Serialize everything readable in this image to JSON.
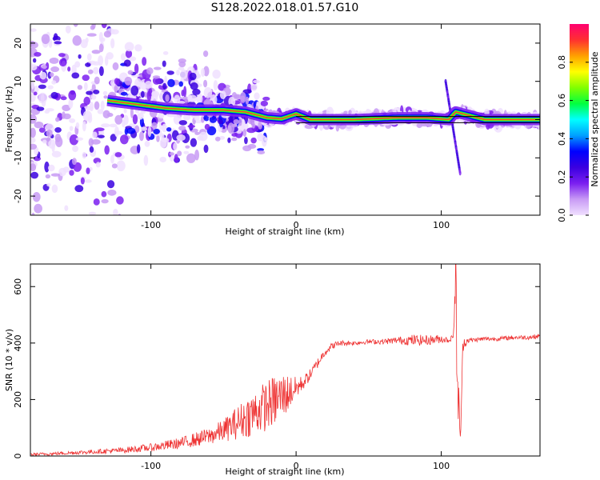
{
  "title": "S128.2022.018.01.57.G10",
  "chart_data": [
    {
      "type": "heatmap",
      "name": "spectrogram",
      "xlabel": "Height of straight line (km)",
      "ylabel": "Frequency (Hz)",
      "xlim": [
        -183,
        168
      ],
      "ylim": [
        -25,
        25
      ],
      "xticks": [
        -100,
        0,
        100
      ],
      "yticks": [
        -20,
        -10,
        0,
        10,
        20
      ],
      "colorbar": {
        "label": "Normalized spectral amplitude",
        "range": [
          0,
          1
        ],
        "ticks": [
          0.0,
          0.2,
          0.4,
          0.6,
          0.8
        ],
        "colors": [
          "#f0e0ff",
          "#c89bf5",
          "#7b1ff0",
          "#3a00e0",
          "#0000ff",
          "#00a0ff",
          "#00ffff",
          "#00ff40",
          "#80ff00",
          "#ffff00",
          "#ffa000",
          "#ff3030",
          "#ff0070"
        ]
      },
      "ridge": {
        "x": [
          -130,
          -110,
          -90,
          -70,
          -50,
          -35,
          -20,
          -10,
          0,
          10,
          40,
          70,
          90,
          105,
          110,
          130,
          150,
          168
        ],
        "freq": [
          5,
          4,
          3,
          2.5,
          2.5,
          2,
          0.5,
          0.2,
          1.5,
          0,
          0,
          0.5,
          0.5,
          0,
          2,
          0,
          0,
          0
        ]
      },
      "transient": {
        "x": [
          103,
          113
        ],
        "freq": [
          10,
          -14
        ]
      }
    },
    {
      "type": "line",
      "name": "snr",
      "xlabel": "Height of straight line (km)",
      "ylabel": "SNR (10 * v/v)",
      "xlim": [
        -183,
        168
      ],
      "ylim": [
        0,
        680
      ],
      "xticks": [
        -100,
        0,
        100
      ],
      "yticks": [
        0,
        200,
        400,
        600
      ],
      "color": "#ee3333",
      "series": [
        {
          "x": [
            -183,
            -160,
            -140,
            -120,
            -100,
            -80,
            -60,
            -50,
            -40,
            -30,
            -20,
            -10,
            0,
            5,
            10,
            15,
            20,
            25,
            30,
            40,
            50,
            60,
            70,
            80,
            90,
            100,
            105,
            108,
            110,
            112,
            113,
            115,
            118,
            120,
            130,
            140,
            150,
            160,
            168
          ],
          "y": [
            5,
            10,
            15,
            20,
            30,
            45,
            70,
            90,
            120,
            150,
            180,
            210,
            240,
            260,
            290,
            330,
            370,
            390,
            400,
            400,
            405,
            405,
            410,
            410,
            410,
            415,
            410,
            420,
            600,
            100,
            40,
            400,
            410,
            410,
            415,
            415,
            420,
            420,
            425
          ],
          "spread": [
            5,
            6,
            8,
            10,
            14,
            20,
            30,
            40,
            60,
            80,
            90,
            90,
            40,
            25,
            20,
            18,
            15,
            12,
            10,
            8,
            8,
            10,
            12,
            20,
            18,
            15,
            10,
            10,
            150,
            200,
            60,
            30,
            10,
            8,
            8,
            8,
            8,
            8,
            8
          ]
        }
      ]
    }
  ]
}
